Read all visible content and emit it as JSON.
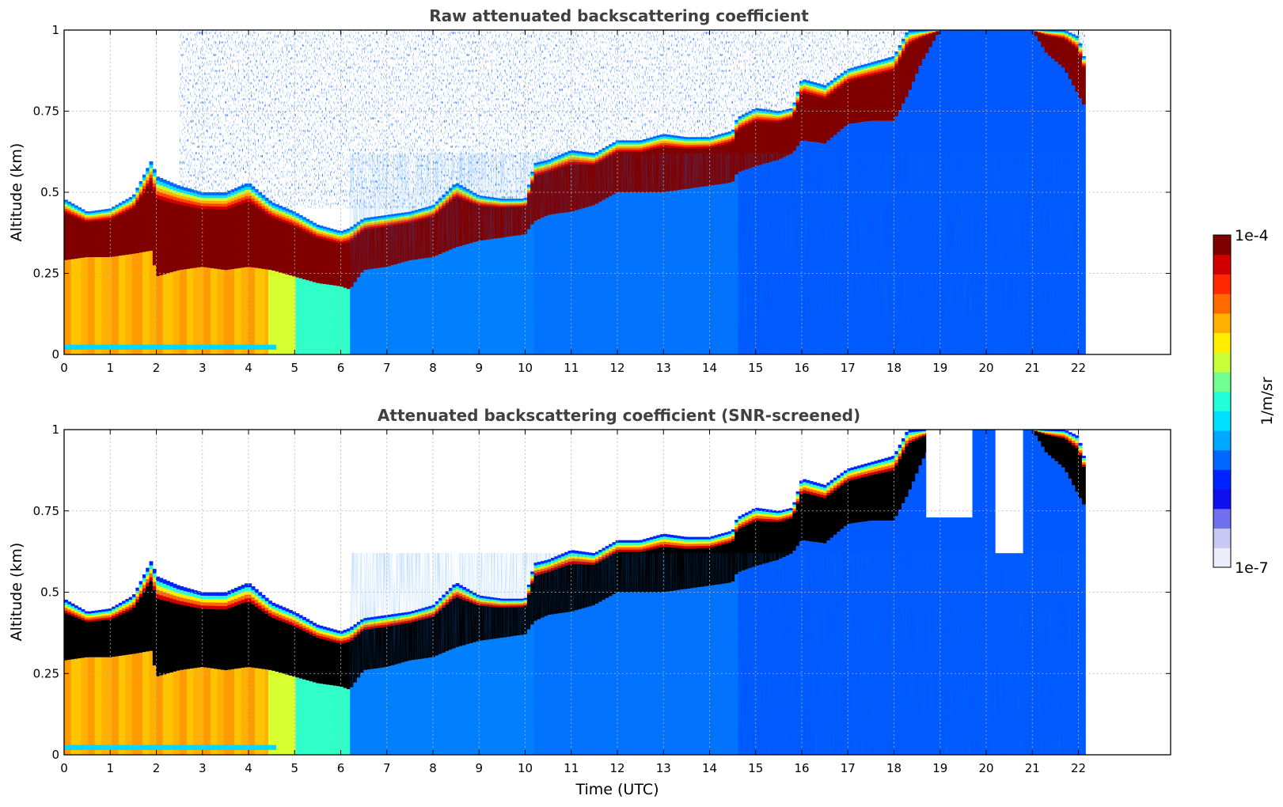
{
  "chart_data": [
    {
      "type": "heatmap",
      "title": "Raw attenuated backscattering coefficient",
      "ylabel": "Altitude (km)",
      "xlabel": "",
      "xlim": [
        0,
        24
      ],
      "ylim": [
        0,
        1
      ],
      "x_ticks": [
        "0",
        "1",
        "2",
        "3",
        "4",
        "5",
        "6",
        "7",
        "8",
        "9",
        "10",
        "11",
        "12",
        "13",
        "14",
        "15",
        "16",
        "17",
        "18",
        "19",
        "20",
        "21",
        "22"
      ],
      "y_ticks": [
        "0",
        "0.25",
        "0.5",
        "0.75",
        "1"
      ],
      "grid": true,
      "data_end_time": 22.15,
      "screened": false,
      "cloud_base_km": {
        "time": [
          0,
          0.5,
          1,
          1.5,
          1.9,
          2,
          2.5,
          3,
          3.5,
          4,
          4.5,
          5,
          5.5,
          6,
          6.2,
          6.5,
          7,
          7.5,
          8,
          8.5,
          9,
          9.5,
          10,
          10.2,
          10.5,
          11,
          11.5,
          12,
          12.5,
          13,
          13.5,
          14,
          14.5,
          14.6,
          15,
          15.5,
          15.8,
          16,
          16.5,
          17,
          17.5,
          18,
          18.3,
          18.6,
          19,
          20,
          21,
          21.3,
          21.7,
          22,
          22.15
        ],
        "value": [
          0.29,
          0.3,
          0.3,
          0.31,
          0.32,
          0.24,
          0.26,
          0.27,
          0.26,
          0.27,
          0.26,
          0.24,
          0.22,
          0.21,
          0.2,
          0.26,
          0.27,
          0.29,
          0.3,
          0.33,
          0.35,
          0.36,
          0.37,
          0.41,
          0.43,
          0.44,
          0.46,
          0.5,
          0.5,
          0.5,
          0.51,
          0.52,
          0.53,
          0.56,
          0.58,
          0.6,
          0.62,
          0.66,
          0.65,
          0.71,
          0.72,
          0.72,
          0.8,
          0.9,
          1.0,
          1.0,
          1.0,
          0.93,
          0.88,
          0.8,
          0.76
        ]
      },
      "cloud_top_km": {
        "time": [
          0,
          0.5,
          1,
          1.5,
          1.9,
          2,
          2.5,
          3,
          3.5,
          4,
          4.5,
          5,
          5.5,
          6,
          6.2,
          6.5,
          7,
          7.5,
          8,
          8.5,
          9,
          9.5,
          10,
          10.2,
          10.5,
          11,
          11.5,
          12,
          12.5,
          13,
          13.5,
          14,
          14.5,
          14.6,
          15,
          15.5,
          15.8,
          16,
          16.5,
          17,
          17.5,
          18,
          18.3,
          18.6,
          19,
          20,
          21,
          21.3,
          21.7,
          22,
          22.15
        ],
        "value": [
          0.48,
          0.44,
          0.45,
          0.49,
          0.6,
          0.55,
          0.52,
          0.5,
          0.5,
          0.53,
          0.47,
          0.44,
          0.4,
          0.38,
          0.39,
          0.42,
          0.43,
          0.44,
          0.46,
          0.53,
          0.49,
          0.48,
          0.48,
          0.59,
          0.6,
          0.63,
          0.62,
          0.66,
          0.66,
          0.68,
          0.67,
          0.67,
          0.69,
          0.73,
          0.76,
          0.75,
          0.76,
          0.85,
          0.83,
          0.88,
          0.9,
          0.92,
          1.0,
          1.0,
          1.0,
          1.0,
          1.0,
          1.0,
          1.0,
          0.98,
          0.9
        ]
      }
    },
    {
      "type": "heatmap",
      "title": "Attenuated backscattering coefficient (SNR-screened)",
      "ylabel": "Altitude (km)",
      "xlabel": "Time (UTC)",
      "xlim": [
        0,
        24
      ],
      "ylim": [
        0,
        1
      ],
      "x_ticks": [
        "0",
        "1",
        "2",
        "3",
        "4",
        "5",
        "6",
        "7",
        "8",
        "9",
        "10",
        "11",
        "12",
        "13",
        "14",
        "15",
        "16",
        "17",
        "18",
        "19",
        "20",
        "21",
        "22"
      ],
      "y_ticks": [
        "0",
        "0.25",
        "0.5",
        "0.75",
        "1"
      ],
      "grid": true,
      "data_end_time": 22.15,
      "screened": true,
      "saturated_color": "#000000"
    }
  ],
  "colorbar": {
    "label": "1/m/sr",
    "max_label": "1e-4",
    "min_label": "1e-7",
    "colors": [
      "#ececfa",
      "#c8c8f5",
      "#7070ee",
      "#1010ee",
      "#0024ff",
      "#0068ff",
      "#00a8ff",
      "#00e0ff",
      "#22ffd8",
      "#70ff90",
      "#c8ff38",
      "#ffee00",
      "#ffb000",
      "#ff6a00",
      "#ff2800",
      "#d00000",
      "#800000"
    ]
  }
}
